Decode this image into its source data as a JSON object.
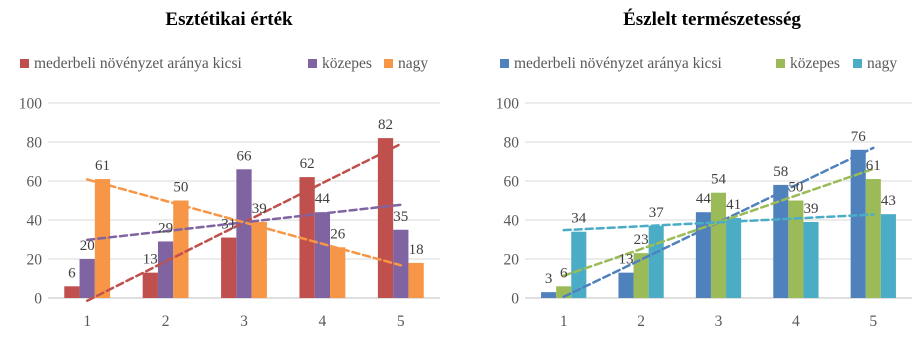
{
  "chart_data": [
    {
      "type": "bar",
      "title": "Esztétikai érték",
      "categories": [
        "1",
        "2",
        "3",
        "4",
        "5"
      ],
      "ylim": [
        0,
        100
      ],
      "yticks": [
        "0",
        "20",
        "40",
        "60",
        "80",
        "100"
      ],
      "grid": true,
      "legend": "top",
      "trendlines": true,
      "series": [
        {
          "name": "mederbeli növényzet aránya kicsi",
          "color": "#c0504d",
          "values": [
            6,
            13,
            31,
            62,
            82
          ]
        },
        {
          "name": "közepes",
          "color": "#8064a2",
          "values": [
            20,
            29,
            66,
            44,
            35
          ]
        },
        {
          "name": "nagy",
          "color": "#f79646",
          "values": [
            61,
            50,
            39,
            26,
            18
          ]
        }
      ],
      "data_labels": [
        [
          "6",
          "13",
          "31",
          "62",
          "82"
        ],
        [
          "20",
          "29",
          "66",
          "44",
          "35"
        ],
        [
          "61",
          "50",
          "39",
          "26",
          "18"
        ]
      ]
    },
    {
      "type": "bar",
      "title": "Észlelt természetesség",
      "categories": [
        "1",
        "2",
        "3",
        "4",
        "5"
      ],
      "ylim": [
        0,
        100
      ],
      "yticks": [
        "0",
        "20",
        "40",
        "60",
        "80",
        "100"
      ],
      "grid": true,
      "legend": "top",
      "trendlines": true,
      "series": [
        {
          "name": "mederbeli növényzet aránya kicsi",
          "color": "#4f81bd",
          "values": [
            3,
            13,
            44,
            58,
            76
          ]
        },
        {
          "name": "közepes",
          "color": "#9bbb59",
          "values": [
            6,
            23,
            54,
            50,
            61
          ]
        },
        {
          "name": "nagy",
          "color": "#4bacc6",
          "values": [
            34,
            37,
            41,
            39,
            43
          ]
        }
      ],
      "data_labels": [
        [
          "3",
          "13",
          "44",
          "58",
          "76"
        ],
        [
          "6",
          "23",
          "54",
          "50",
          "61"
        ],
        [
          "34",
          "37",
          "41",
          "39",
          "43"
        ]
      ]
    }
  ]
}
